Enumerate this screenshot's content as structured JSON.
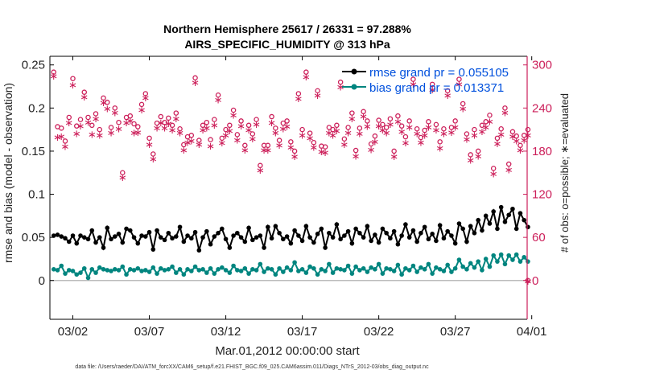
{
  "chart_data": {
    "type": "line",
    "title": "Northern Hemisphere 25617 / 26331 = 97.288%",
    "subtitle": "AIRS_SPECIFIC_HUMIDITY @ 313 hPa",
    "xlabel": "Mar.01,2012 00:00:00 start",
    "ylabel_left": "rmse and bias (model - observation)",
    "ylabel_right": "# of obs: o=possible; ∗=evaluated",
    "footer": "data file: /Users/raeder/DAI/ATM_forcXX/CAM6_setup/f.e21.FHIST_BGC.f09_025.CAM6assim.011/Diags_NTrS_2012-03/obs_diag_output.nc",
    "xlim": [
      0.5,
      31.7
    ],
    "ylim_left": [
      -0.045,
      0.26
    ],
    "ylim_right": [
      -54,
      312
    ],
    "x_ticks": [
      {
        "v": 2,
        "label": "03/02"
      },
      {
        "v": 7,
        "label": "03/07"
      },
      {
        "v": 12,
        "label": "03/12"
      },
      {
        "v": 17,
        "label": "03/17"
      },
      {
        "v": 22,
        "label": "03/22"
      },
      {
        "v": 27,
        "label": "03/27"
      },
      {
        "v": 32,
        "label": "04/01"
      }
    ],
    "y_ticks_left": [
      {
        "v": 0,
        "label": "0"
      },
      {
        "v": 0.05,
        "label": "0.05"
      },
      {
        "v": 0.1,
        "label": "0.1"
      },
      {
        "v": 0.15,
        "label": "0.15"
      },
      {
        "v": 0.2,
        "label": "0.2"
      },
      {
        "v": 0.25,
        "label": "0.25"
      }
    ],
    "y_ticks_right": [
      {
        "v": 0,
        "label": "0"
      },
      {
        "v": 60,
        "label": "60"
      },
      {
        "v": 120,
        "label": "120"
      },
      {
        "v": 180,
        "label": "180"
      },
      {
        "v": 240,
        "label": "240"
      },
      {
        "v": 300,
        "label": "300"
      }
    ],
    "zero_line": true,
    "colors": {
      "rmse": "#000000",
      "bias": "#00857f",
      "obs": "#cc1f5a",
      "zero": "#bbbbbb"
    },
    "x": [
      0.75,
      1.0,
      1.25,
      1.5,
      1.75,
      2.0,
      2.25,
      2.5,
      2.75,
      3.0,
      3.25,
      3.5,
      3.75,
      4.0,
      4.25,
      4.5,
      4.75,
      5.0,
      5.25,
      5.5,
      5.75,
      6.0,
      6.25,
      6.5,
      6.75,
      7.0,
      7.25,
      7.5,
      7.75,
      8.0,
      8.25,
      8.5,
      8.75,
      9.0,
      9.25,
      9.5,
      9.75,
      10.0,
      10.25,
      10.5,
      10.75,
      11.0,
      11.25,
      11.5,
      11.75,
      12.0,
      12.25,
      12.5,
      12.75,
      13.0,
      13.25,
      13.5,
      13.75,
      14.0,
      14.25,
      14.5,
      14.75,
      15.0,
      15.25,
      15.5,
      15.75,
      16.0,
      16.25,
      16.5,
      16.75,
      17.0,
      17.25,
      17.5,
      17.75,
      18.0,
      18.25,
      18.5,
      18.75,
      19.0,
      19.25,
      19.5,
      19.75,
      20.0,
      20.25,
      20.5,
      20.75,
      21.0,
      21.25,
      21.5,
      21.75,
      22.0,
      22.25,
      22.5,
      22.75,
      23.0,
      23.25,
      23.5,
      23.75,
      24.0,
      24.25,
      24.5,
      24.75,
      25.0,
      25.25,
      25.5,
      25.75,
      26.0,
      26.25,
      26.5,
      26.75,
      27.0,
      27.25,
      27.5,
      27.75,
      28.0,
      28.25,
      28.5,
      28.75,
      29.0,
      29.25,
      29.5,
      29.75,
      30.0,
      30.25,
      30.5,
      30.75,
      31.0,
      31.25,
      31.5,
      31.75
    ],
    "series": [
      {
        "name": "rmse grand pr = 0.055105",
        "legend_label": "rmse grand pr = 0.055105",
        "values": [
          0.052,
          0.053,
          0.051,
          0.049,
          0.045,
          0.052,
          0.043,
          0.052,
          0.05,
          0.048,
          0.058,
          0.044,
          0.05,
          0.038,
          0.061,
          0.048,
          0.051,
          0.054,
          0.044,
          0.06,
          0.058,
          0.05,
          0.043,
          0.052,
          0.051,
          0.056,
          0.036,
          0.058,
          0.05,
          0.047,
          0.055,
          0.049,
          0.051,
          0.062,
          0.045,
          0.052,
          0.049,
          0.056,
          0.035,
          0.05,
          0.057,
          0.042,
          0.051,
          0.055,
          0.06,
          0.048,
          0.038,
          0.052,
          0.055,
          0.05,
          0.045,
          0.061,
          0.047,
          0.05,
          0.052,
          0.038,
          0.062,
          0.049,
          0.063,
          0.055,
          0.048,
          0.051,
          0.043,
          0.058,
          0.052,
          0.046,
          0.063,
          0.05,
          0.044,
          0.054,
          0.06,
          0.038,
          0.055,
          0.05,
          0.065,
          0.048,
          0.052,
          0.057,
          0.043,
          0.06,
          0.055,
          0.05,
          0.063,
          0.046,
          0.053,
          0.044,
          0.06,
          0.055,
          0.049,
          0.057,
          0.042,
          0.052,
          0.065,
          0.05,
          0.058,
          0.045,
          0.055,
          0.062,
          0.048,
          0.054,
          0.046,
          0.064,
          0.049,
          0.057,
          0.052,
          0.043,
          0.066,
          0.06,
          0.045,
          0.063,
          0.055,
          0.07,
          0.058,
          0.075,
          0.066,
          0.08,
          0.06,
          0.085,
          0.068,
          0.076,
          0.083,
          0.06,
          0.078,
          0.07,
          0.062
        ]
      },
      {
        "name": "bias grand pr = 0.013371",
        "legend_label": "bias grand pr = 0.013371",
        "values": [
          0.013,
          0.012,
          0.017,
          0.008,
          0.012,
          0.011,
          0.007,
          0.009,
          0.014,
          0.003,
          0.013,
          0.009,
          0.015,
          0.013,
          0.012,
          0.011,
          0.013,
          0.012,
          0.016,
          0.007,
          0.013,
          0.012,
          0.014,
          0.011,
          0.012,
          0.01,
          0.015,
          0.008,
          0.014,
          0.012,
          0.013,
          0.016,
          0.009,
          0.013,
          0.007,
          0.013,
          0.011,
          0.016,
          0.012,
          0.013,
          0.009,
          0.014,
          0.008,
          0.013,
          0.015,
          0.012,
          0.009,
          0.017,
          0.012,
          0.011,
          0.014,
          0.008,
          0.013,
          0.012,
          0.019,
          0.01,
          0.014,
          0.013,
          0.007,
          0.014,
          0.01,
          0.015,
          0.012,
          0.021,
          0.011,
          0.013,
          0.009,
          0.016,
          0.014,
          0.007,
          0.013,
          0.011,
          0.019,
          0.009,
          0.014,
          0.013,
          0.012,
          0.017,
          0.008,
          0.016,
          0.012,
          0.014,
          0.01,
          0.015,
          0.013,
          0.019,
          0.008,
          0.014,
          0.013,
          0.011,
          0.018,
          0.007,
          0.014,
          0.012,
          0.017,
          0.01,
          0.015,
          0.013,
          0.019,
          0.008,
          0.015,
          0.013,
          0.011,
          0.018,
          0.01,
          0.014,
          0.024,
          0.016,
          0.013,
          0.02,
          0.015,
          0.022,
          0.012,
          0.025,
          0.016,
          0.029,
          0.022,
          0.03,
          0.019,
          0.029,
          0.024,
          0.03,
          0.022,
          0.027,
          0.022
        ]
      },
      {
        "name": "obs possible",
        "marker": "o",
        "axis": "right",
        "values": [
          290,
          214,
          212,
          194,
          227,
          281,
          215,
          224,
          262,
          227,
          216,
          232,
          210,
          254,
          248,
          213,
          240,
          220,
          150,
          227,
          229,
          218,
          214,
          245,
          260,
          198,
          176,
          219,
          228,
          220,
          226,
          216,
          233,
          211,
          189,
          200,
          202,
          282,
          195,
          216,
          220,
          196,
          224,
          258,
          198,
          210,
          216,
          237,
          203,
          222,
          188,
          216,
          204,
          224,
          160,
          188,
          188,
          228,
          212,
          195,
          219,
          222,
          193,
          180,
          260,
          210,
          290,
          205,
          192,
          264,
          187,
          186,
          213,
          210,
          216,
          276,
          197,
          213,
          233,
          181,
          212,
          235,
          222,
          190,
          201,
          223,
          217,
          213,
          225,
          180,
          229,
          215,
          200,
          222,
          280,
          211,
          199,
          209,
          221,
          273,
          217,
          193,
          211,
          264,
          213,
          222,
          280,
          246,
          204,
          175,
          210,
          180,
          216,
          221,
          230,
          156,
          198,
          211,
          240,
          162,
          207,
          201,
          188,
          202,
          210
        ]
      },
      {
        "name": "obs evaluated",
        "marker": "*",
        "axis": "right",
        "values": [
          285,
          200,
          201,
          187,
          220,
          273,
          205,
          216,
          256,
          221,
          204,
          226,
          203,
          248,
          240,
          206,
          234,
          212,
          144,
          220,
          223,
          206,
          207,
          238,
          255,
          190,
          170,
          213,
          220,
          213,
          219,
          210,
          226,
          206,
          182,
          193,
          195,
          276,
          190,
          210,
          213,
          188,
          217,
          252,
          192,
          203,
          209,
          231,
          196,
          216,
          182,
          210,
          198,
          218,
          154,
          182,
          182,
          220,
          206,
          189,
          212,
          215,
          186,
          173,
          254,
          203,
          284,
          199,
          186,
          258,
          180,
          179,
          206,
          203,
          209,
          270,
          190,
          206,
          226,
          174,
          205,
          229,
          215,
          183,
          194,
          216,
          210,
          206,
          218,
          173,
          222,
          208,
          192,
          214,
          274,
          205,
          193,
          203,
          214,
          266,
          210,
          185,
          205,
          258,
          207,
          214,
          274,
          240,
          197,
          168,
          203,
          174,
          208,
          214,
          222,
          149,
          191,
          204,
          234,
          155,
          201,
          195,
          182,
          196,
          203
        ]
      }
    ]
  }
}
